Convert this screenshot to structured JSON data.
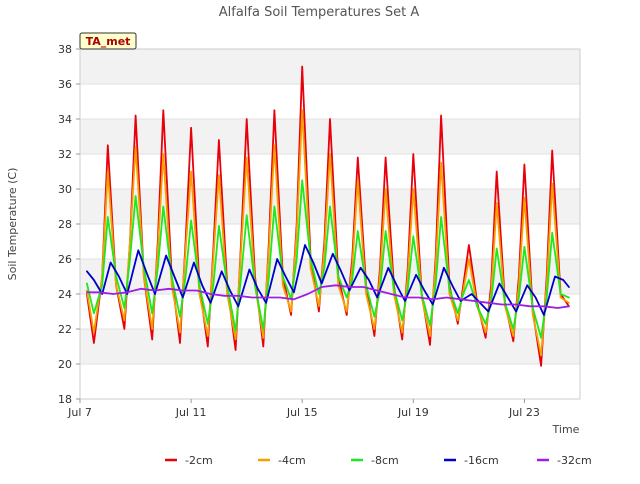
{
  "chart_data": {
    "type": "line",
    "title": "Alfalfa Soil Temperatures Set A",
    "xlabel": "Time",
    "ylabel": "Soil Temperature (C)",
    "badge": "TA_met",
    "ylim": [
      18,
      38
    ],
    "yticks": [
      18,
      20,
      22,
      24,
      26,
      28,
      30,
      32,
      34,
      36,
      38
    ],
    "x_start": "Jul 7",
    "xlim_days": [
      7.0,
      25.0
    ],
    "xticks": [
      {
        "day": 7,
        "label": "Jul 7"
      },
      {
        "day": 11,
        "label": "Jul 11"
      },
      {
        "day": 15,
        "label": "Jul 15"
      },
      {
        "day": 19,
        "label": "Jul 19"
      },
      {
        "day": 23,
        "label": "Jul 23"
      }
    ],
    "grid": "horizontal bands",
    "legend_position": "bottom",
    "series": [
      {
        "name": "-2cm",
        "color": "#e8000b",
        "x": [
          7.25,
          7.5,
          7.8,
          8.0,
          8.3,
          8.6,
          8.8,
          9.0,
          9.3,
          9.6,
          9.8,
          10.0,
          10.3,
          10.6,
          10.8,
          11.0,
          11.3,
          11.6,
          11.8,
          12.0,
          12.3,
          12.6,
          12.8,
          13.0,
          13.3,
          13.6,
          13.8,
          14.0,
          14.3,
          14.6,
          14.8,
          15.0,
          15.3,
          15.6,
          15.8,
          16.0,
          16.3,
          16.6,
          16.8,
          17.0,
          17.3,
          17.6,
          17.8,
          18.0,
          18.3,
          18.6,
          18.8,
          19.0,
          19.3,
          19.6,
          19.8,
          20.0,
          20.3,
          20.6,
          20.8,
          21.0,
          21.3,
          21.6,
          21.8,
          22.0,
          22.3,
          22.6,
          22.8,
          23.0,
          23.3,
          23.6,
          23.8,
          24.0,
          24.3,
          24.6
        ],
        "y": [
          24.0,
          21.2,
          25.0,
          32.5,
          24.5,
          22.0,
          27.0,
          34.2,
          25.0,
          21.4,
          27.0,
          34.5,
          25.0,
          21.2,
          27.0,
          33.5,
          24.5,
          21.0,
          26.5,
          32.8,
          24.5,
          20.8,
          27.0,
          34.0,
          25.0,
          21.0,
          27.0,
          34.5,
          25.0,
          22.8,
          28.0,
          37.0,
          26.0,
          23.0,
          27.0,
          34.0,
          25.0,
          22.8,
          26.0,
          31.8,
          24.5,
          21.6,
          25.5,
          31.8,
          24.5,
          21.4,
          25.5,
          32.0,
          24.0,
          21.1,
          26.0,
          34.2,
          24.5,
          22.3,
          24.5,
          26.8,
          23.5,
          21.5,
          24.5,
          31.0,
          23.5,
          21.3,
          25.0,
          31.4,
          23.0,
          19.9,
          25.0,
          32.2,
          24.0,
          23.3
        ]
      },
      {
        "name": "-4cm",
        "color": "#f5a000",
        "x": [
          7.25,
          7.5,
          7.8,
          8.0,
          8.3,
          8.6,
          8.8,
          9.0,
          9.3,
          9.6,
          9.8,
          10.0,
          10.3,
          10.6,
          10.8,
          11.0,
          11.3,
          11.6,
          11.8,
          12.0,
          12.3,
          12.6,
          12.8,
          13.0,
          13.3,
          13.6,
          13.8,
          14.0,
          14.3,
          14.6,
          14.8,
          15.0,
          15.3,
          15.6,
          15.8,
          16.0,
          16.3,
          16.6,
          16.8,
          17.0,
          17.3,
          17.6,
          17.8,
          18.0,
          18.3,
          18.6,
          18.8,
          19.0,
          19.3,
          19.6,
          19.8,
          20.0,
          20.3,
          20.6,
          20.8,
          21.0,
          21.3,
          21.6,
          21.8,
          22.0,
          22.3,
          22.6,
          22.8,
          23.0,
          23.3,
          23.6,
          23.8,
          24.0,
          24.3,
          24.6
        ],
        "y": [
          24.2,
          21.8,
          25.0,
          31.0,
          24.5,
          22.5,
          27.0,
          32.4,
          25.0,
          22.0,
          26.5,
          32.0,
          24.5,
          21.8,
          26.5,
          31.0,
          24.0,
          21.6,
          26.0,
          30.8,
          24.0,
          21.4,
          26.5,
          31.8,
          24.5,
          21.5,
          26.5,
          32.5,
          24.5,
          23.0,
          27.5,
          34.5,
          25.5,
          23.3,
          26.5,
          32.0,
          24.5,
          23.0,
          25.5,
          30.5,
          24.0,
          22.0,
          25.0,
          30.0,
          24.0,
          21.8,
          25.0,
          30.0,
          23.8,
          21.6,
          25.5,
          31.5,
          24.0,
          22.5,
          24.2,
          26.0,
          23.3,
          21.8,
          24.0,
          29.2,
          23.3,
          21.6,
          24.5,
          29.5,
          22.8,
          20.5,
          24.5,
          30.3,
          23.8,
          23.5
        ]
      },
      {
        "name": "-8cm",
        "color": "#1ee81e",
        "x": [
          7.25,
          7.5,
          7.8,
          8.0,
          8.3,
          8.6,
          8.8,
          9.0,
          9.3,
          9.6,
          9.8,
          10.0,
          10.3,
          10.6,
          10.8,
          11.0,
          11.3,
          11.6,
          11.8,
          12.0,
          12.3,
          12.6,
          12.8,
          13.0,
          13.3,
          13.6,
          13.8,
          14.0,
          14.3,
          14.6,
          14.8,
          15.0,
          15.3,
          15.6,
          15.8,
          16.0,
          16.3,
          16.6,
          16.8,
          17.0,
          17.3,
          17.6,
          17.8,
          18.0,
          18.3,
          18.6,
          18.8,
          19.0,
          19.3,
          19.6,
          19.8,
          20.0,
          20.3,
          20.6,
          20.8,
          21.0,
          21.3,
          21.6,
          21.8,
          22.0,
          22.3,
          22.6,
          22.8,
          23.0,
          23.3,
          23.6,
          23.8,
          24.0,
          24.3,
          24.6
        ],
        "y": [
          24.6,
          22.9,
          24.5,
          28.4,
          25.0,
          23.2,
          26.0,
          29.6,
          25.5,
          22.9,
          25.5,
          29.0,
          25.0,
          22.7,
          25.0,
          28.2,
          24.5,
          22.3,
          24.5,
          27.9,
          24.5,
          21.9,
          25.0,
          28.5,
          24.5,
          22.0,
          25.0,
          29.0,
          25.0,
          23.7,
          26.0,
          30.5,
          26.0,
          24.0,
          25.5,
          29.0,
          25.0,
          23.8,
          24.8,
          27.6,
          24.5,
          22.7,
          24.2,
          27.6,
          24.3,
          22.5,
          24.3,
          27.3,
          24.0,
          22.2,
          24.5,
          28.4,
          24.3,
          22.9,
          24.0,
          24.8,
          23.3,
          22.3,
          23.5,
          26.6,
          23.5,
          22.0,
          23.8,
          26.7,
          23.2,
          21.5,
          23.8,
          27.5,
          24.0,
          23.8
        ]
      },
      {
        "name": "-16cm",
        "color": "#0000cc",
        "x": [
          7.25,
          7.5,
          7.8,
          8.1,
          8.4,
          8.7,
          9.1,
          9.4,
          9.7,
          10.1,
          10.4,
          10.7,
          11.1,
          11.4,
          11.7,
          12.1,
          12.4,
          12.7,
          13.1,
          13.4,
          13.7,
          14.1,
          14.4,
          14.7,
          15.1,
          15.4,
          15.7,
          16.1,
          16.4,
          16.7,
          17.1,
          17.4,
          17.7,
          18.1,
          18.4,
          18.7,
          19.1,
          19.4,
          19.7,
          20.1,
          20.4,
          20.7,
          21.1,
          21.4,
          21.7,
          22.1,
          22.4,
          22.7,
          23.1,
          23.4,
          23.7,
          24.1,
          24.4,
          24.6
        ],
        "y": [
          25.3,
          24.8,
          24.0,
          25.8,
          25.0,
          24.0,
          26.5,
          25.2,
          24.0,
          26.2,
          25.0,
          23.8,
          25.8,
          24.5,
          23.5,
          25.3,
          24.2,
          23.3,
          25.4,
          24.3,
          23.5,
          26.0,
          25.0,
          24.1,
          26.8,
          25.8,
          24.6,
          26.3,
          25.3,
          24.2,
          25.5,
          24.8,
          23.8,
          25.5,
          24.5,
          23.6,
          25.1,
          24.2,
          23.4,
          25.5,
          24.5,
          23.6,
          24.0,
          23.5,
          23.0,
          24.6,
          23.8,
          23.0,
          24.5,
          23.8,
          22.8,
          25.0,
          24.8,
          24.4
        ]
      },
      {
        "name": "-32cm",
        "color": "#9b1fe8",
        "x": [
          7.25,
          7.7,
          8.2,
          8.7,
          9.2,
          9.7,
          10.2,
          10.7,
          11.2,
          11.7,
          12.2,
          12.7,
          13.2,
          13.7,
          14.2,
          14.7,
          15.2,
          15.7,
          16.2,
          16.7,
          17.2,
          17.7,
          18.2,
          18.7,
          19.2,
          19.7,
          20.2,
          20.7,
          21.2,
          21.7,
          22.2,
          22.7,
          23.2,
          23.7,
          24.2,
          24.6
        ],
        "y": [
          24.1,
          24.1,
          24.0,
          24.1,
          24.3,
          24.2,
          24.3,
          24.2,
          24.2,
          24.0,
          23.9,
          23.9,
          23.8,
          23.8,
          23.8,
          23.7,
          24.0,
          24.4,
          24.5,
          24.4,
          24.4,
          24.2,
          24.0,
          23.8,
          23.8,
          23.7,
          23.8,
          23.7,
          23.6,
          23.5,
          23.4,
          23.4,
          23.3,
          23.3,
          23.2,
          23.3
        ]
      }
    ]
  }
}
